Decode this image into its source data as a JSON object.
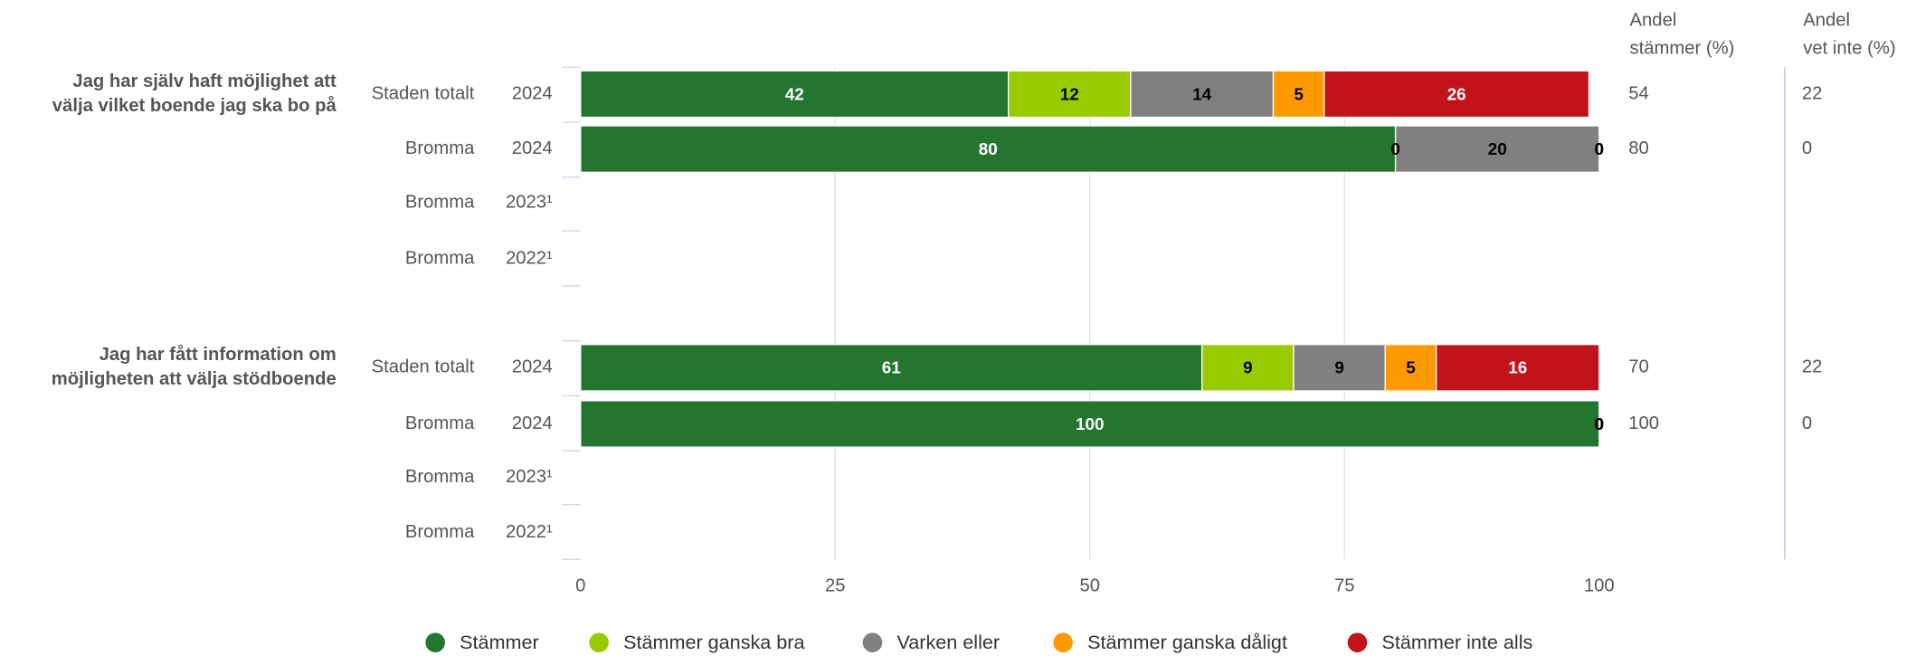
{
  "chart_data": {
    "type": "stacked-bar-horizontal",
    "questions": [
      [
        "Jag har själv haft möjlighet att",
        "välja vilket boende jag ska bo på"
      ],
      [
        "Jag har fått information om",
        "möjligheten att välja stödboende"
      ]
    ],
    "units": [
      "Staden totalt",
      "Bromma",
      "Bromma",
      "Bromma",
      "Staden totalt",
      "Bromma",
      "Bromma",
      "Bromma"
    ],
    "years": [
      "2024",
      "2024",
      "2023¹",
      "2022¹",
      "2024",
      "2024",
      "2023¹",
      "2022¹"
    ],
    "series": [
      {
        "name": "Stämmer",
        "color": "#237530",
        "label_color": "#ffffff",
        "values": [
          42,
          80,
          null,
          null,
          61,
          100,
          null,
          null
        ]
      },
      {
        "name": "Stämmer ganska bra",
        "color": "#99cc00",
        "label_color": "#000000",
        "values": [
          12,
          0,
          null,
          null,
          9,
          0,
          null,
          null
        ]
      },
      {
        "name": "Varken eller",
        "color": "#808080",
        "label_color": "#000000",
        "values": [
          14,
          20,
          null,
          null,
          9,
          0,
          null,
          null
        ]
      },
      {
        "name": "Stämmer ganska dåligt",
        "color": "#ff9900",
        "label_color": "#000000",
        "values": [
          5,
          0,
          null,
          null,
          5,
          0,
          null,
          null
        ]
      },
      {
        "name": "Stämmer inte alls",
        "color": "#c0141a",
        "label_color": "#ffffff",
        "values": [
          26,
          0,
          null,
          null,
          16,
          0,
          null,
          null
        ]
      }
    ],
    "column_headers": [
      [
        "Andel",
        "stämmer (%)"
      ],
      [
        "Andel",
        "vet inte (%)"
      ]
    ],
    "columns": [
      [
        54,
        80,
        null,
        null,
        70,
        100,
        null,
        null
      ],
      [
        22,
        0,
        null,
        null,
        22,
        0,
        null,
        null
      ]
    ],
    "xlim": [
      0,
      100
    ],
    "xticks": [
      0,
      25,
      50,
      75,
      100
    ],
    "grid": true,
    "legend": "bottom"
  }
}
